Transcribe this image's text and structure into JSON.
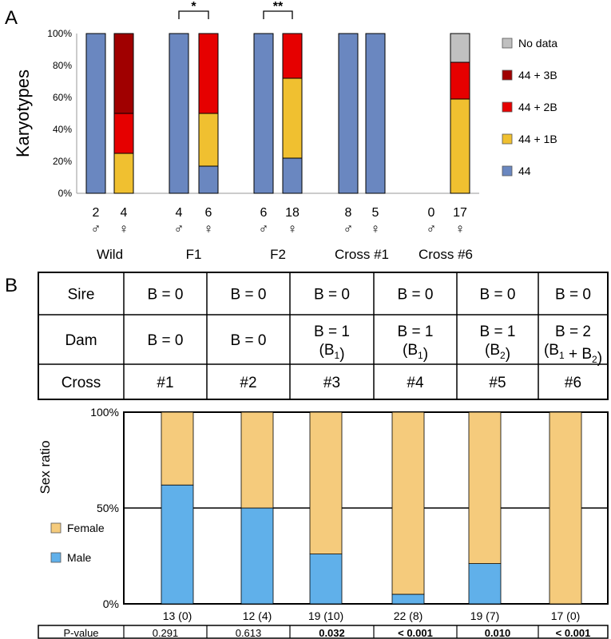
{
  "chart_data": [
    {
      "panel_label": "A",
      "type": "bar",
      "stacked": true,
      "ylabel": "Karyotypes",
      "ylim": [
        0,
        100
      ],
      "yticks": [
        "0%",
        "20%",
        "40%",
        "60%",
        "80%",
        "100%"
      ],
      "groups": [
        "Wild",
        "F1",
        "F2",
        "Cross #1",
        "Cross #6"
      ],
      "bars": [
        {
          "group": 0,
          "n": "2",
          "sex": "♂",
          "values": {
            "44": 100,
            "44 + 1B": 0,
            "44 + 2B": 0,
            "44 + 3B": 0,
            "No data": 0
          }
        },
        {
          "group": 0,
          "n": "4",
          "sex": "♀",
          "values": {
            "44": 0,
            "44 + 1B": 25,
            "44 + 2B": 25,
            "44 + 3B": 50,
            "No data": 0
          }
        },
        {
          "group": 1,
          "n": "4",
          "sex": "♂",
          "values": {
            "44": 100,
            "44 + 1B": 0,
            "44 + 2B": 0,
            "44 + 3B": 0,
            "No data": 0
          }
        },
        {
          "group": 1,
          "n": "6",
          "sex": "♀",
          "values": {
            "44": 17,
            "44 + 1B": 33,
            "44 + 2B": 50,
            "44 + 3B": 0,
            "No data": 0
          }
        },
        {
          "group": 2,
          "n": "6",
          "sex": "♂",
          "values": {
            "44": 100,
            "44 + 1B": 0,
            "44 + 2B": 0,
            "44 + 3B": 0,
            "No data": 0
          }
        },
        {
          "group": 2,
          "n": "18",
          "sex": "♀",
          "values": {
            "44": 22,
            "44 + 1B": 50,
            "44 + 2B": 28,
            "44 + 3B": 0,
            "No data": 0
          }
        },
        {
          "group": 3,
          "n": "8",
          "sex": "♂",
          "values": {
            "44": 100,
            "44 + 1B": 0,
            "44 + 2B": 0,
            "44 + 3B": 0,
            "No data": 0
          }
        },
        {
          "group": 3,
          "n": "5",
          "sex": "♀",
          "values": {
            "44": 100,
            "44 + 1B": 0,
            "44 + 2B": 0,
            "44 + 3B": 0,
            "No data": 0
          }
        },
        {
          "group": 4,
          "n": "0",
          "sex": "♂",
          "values": {
            "44": 0,
            "44 + 1B": 0,
            "44 + 2B": 0,
            "44 + 3B": 0,
            "No data": 0
          }
        },
        {
          "group": 4,
          "n": "17",
          "sex": "♀",
          "values": {
            "44": 0,
            "44 + 1B": 59,
            "44 + 2B": 23,
            "44 + 3B": 0,
            "No data": 18
          }
        }
      ],
      "stack_order": [
        "44",
        "44 + 1B",
        "44 + 2B",
        "44 + 3B",
        "No data"
      ],
      "legend": [
        {
          "name": "No data",
          "color": "#c0c0c0"
        },
        {
          "name": "44 + 3B",
          "color": "#a00000"
        },
        {
          "name": "44 + 2B",
          "color": "#e60000"
        },
        {
          "name": "44 + 1B",
          "color": "#f0c030"
        },
        {
          "name": "44",
          "color": "#6a87c0"
        }
      ],
      "legend_position": "right",
      "significance": [
        {
          "bars": [
            2,
            3
          ],
          "label": "*"
        },
        {
          "bars": [
            4,
            5
          ],
          "label": "**"
        }
      ]
    },
    {
      "panel_label": "B",
      "type": "bar",
      "stacked": true,
      "ylabel": "Sex ratio",
      "ylim": [
        0,
        100
      ],
      "yticks": [
        "0%",
        "50%",
        "100%"
      ],
      "reference_line": 50,
      "table": {
        "rows": [
          {
            "header": "Sire",
            "cells": [
              [
                "B = 0"
              ],
              [
                "B = 0"
              ],
              [
                "B = 0"
              ],
              [
                "B = 0"
              ],
              [
                "B = 0"
              ],
              [
                "B = 0"
              ]
            ]
          },
          {
            "header": "Dam",
            "cells": [
              [
                "B  = 0"
              ],
              [
                "B = 0"
              ],
              [
                "B = 1",
                "(B1)"
              ],
              [
                "B = 1",
                "(B1)"
              ],
              [
                "B = 1",
                "(B2)"
              ],
              [
                "B = 2",
                "(B1 + B2)"
              ]
            ]
          },
          {
            "header": "Cross",
            "cells": [
              [
                "#1"
              ],
              [
                "#2"
              ],
              [
                "#3"
              ],
              [
                "#4"
              ],
              [
                "#5"
              ],
              [
                "#6"
              ]
            ]
          }
        ]
      },
      "categories": [
        "13 (0)",
        "12 (4)",
        "19 (10)",
        "22 (8)",
        "19 (7)",
        "17 (0)"
      ],
      "series": [
        {
          "name": "Male",
          "color": "#60b0ea",
          "values": [
            62,
            50,
            26,
            5,
            21,
            0
          ]
        },
        {
          "name": "Female",
          "color": "#f5cb7c",
          "values": [
            38,
            50,
            74,
            95,
            79,
            100
          ]
        }
      ],
      "legend_position": "left",
      "pvalue": {
        "label": "P-value",
        "values": [
          "0.291",
          "0.613",
          "0.032",
          "< 0.001",
          "0.010",
          "< 0.001"
        ],
        "bold": [
          false,
          false,
          true,
          true,
          true,
          true
        ]
      }
    }
  ]
}
